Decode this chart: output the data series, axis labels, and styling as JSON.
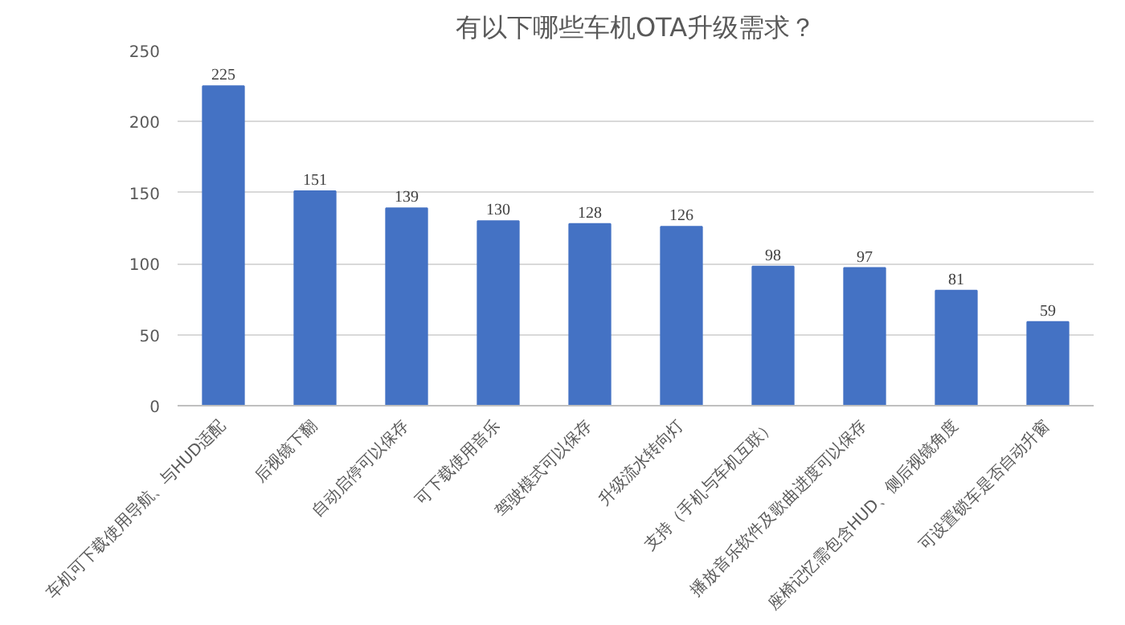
{
  "chart_data": {
    "type": "bar",
    "title": "有以下哪些车机OTA升级需求？",
    "categories": [
      "车机可下载使用导航、与HUD适配",
      "后视镜下翻",
      "自动启停可以保存",
      "可下载使用音乐",
      "驾驶模式可以保存",
      "升级流水转向灯",
      "支持（手机与车机互联）",
      "播放音乐软件及歌曲进度可以保存",
      "座椅记忆需包含HUD、侧后视镜角度",
      "可设置锁车是否自动升窗"
    ],
    "values": [
      225,
      151,
      139,
      130,
      128,
      126,
      98,
      97,
      81,
      59
    ],
    "color": "#4472c4",
    "ylim": [
      0,
      250
    ],
    "yticks": [
      0,
      50,
      100,
      150,
      200,
      250
    ],
    "grid": "y",
    "data_labels": true
  }
}
